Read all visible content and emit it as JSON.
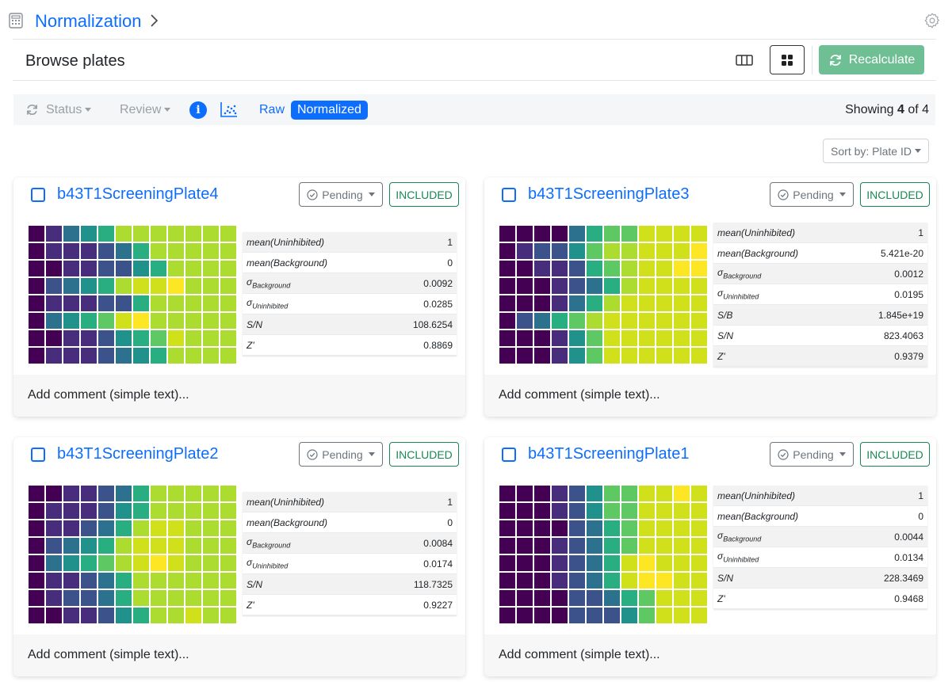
{
  "header": {
    "title": "Normalization",
    "section_title": "Browse plates",
    "recalculate_label": "Recalculate"
  },
  "toolbar": {
    "status_label": "Status",
    "review_label": "Review",
    "raw_label": "Raw",
    "normalized_label": "Normalized",
    "showing_prefix": "Showing",
    "showing_count": "4",
    "showing_of": "of 4"
  },
  "sort": {
    "label": "Sort by: Plate ID"
  },
  "colors": {
    "accent": "#0d6efd",
    "success": "#198754",
    "recalc": "#6fbf95",
    "viridis": [
      "#440154",
      "#472d7b",
      "#3b528b",
      "#2c728e",
      "#21918c",
      "#28ae80",
      "#5ec962",
      "#addc30",
      "#d0e11c",
      "#fde725"
    ]
  },
  "plates": [
    {
      "name": "b43T1ScreeningPlate4",
      "status": "Pending",
      "inclusion": "INCLUDED",
      "comment_placeholder": "Add comment (simple text)...",
      "stats": [
        {
          "key": "mean(Uninhibited)",
          "sub": "",
          "value": "1"
        },
        {
          "key": "mean(Background)",
          "sub": "",
          "value": "0"
        },
        {
          "key": "σ",
          "sub": "Background",
          "value": "0.0092"
        },
        {
          "key": "σ",
          "sub": "Uninhibited",
          "value": "0.0285"
        },
        {
          "key": "S/N",
          "sub": "",
          "value": "108.6254"
        },
        {
          "key": "Z'",
          "sub": "",
          "value": "0.8869"
        }
      ],
      "heatmap": [
        [
          0,
          1,
          3,
          4,
          5,
          7,
          7,
          7,
          7,
          7,
          7,
          7
        ],
        [
          0,
          1,
          1,
          1,
          2,
          3,
          5,
          7,
          7,
          7,
          7,
          7
        ],
        [
          0,
          0,
          1,
          1,
          2,
          2,
          4,
          5,
          7,
          7,
          7,
          7
        ],
        [
          0,
          2,
          3,
          4,
          5,
          7,
          8,
          8,
          9,
          7,
          7,
          7
        ],
        [
          0,
          1,
          1,
          1,
          2,
          2,
          5,
          7,
          7,
          7,
          7,
          7
        ],
        [
          0,
          3,
          4,
          5,
          6,
          8,
          9,
          7,
          7,
          7,
          7,
          7
        ],
        [
          0,
          0,
          1,
          1,
          2,
          4,
          5,
          6,
          8,
          7,
          7,
          7
        ],
        [
          0,
          1,
          1,
          1,
          2,
          3,
          4,
          5,
          7,
          7,
          7,
          7
        ]
      ]
    },
    {
      "name": "b43T1ScreeningPlate3",
      "status": "Pending",
      "inclusion": "INCLUDED",
      "comment_placeholder": "Add comment (simple text)...",
      "stats": [
        {
          "key": "mean(Uninhibited)",
          "sub": "",
          "value": "1"
        },
        {
          "key": "mean(Background)",
          "sub": "",
          "value": "5.421e-20"
        },
        {
          "key": "σ",
          "sub": "Background",
          "value": "0.0012"
        },
        {
          "key": "σ",
          "sub": "Uninhibited",
          "value": "0.0195"
        },
        {
          "key": "S/B",
          "sub": "",
          "value": "1.845e+19"
        },
        {
          "key": "S/N",
          "sub": "",
          "value": "823.4063"
        },
        {
          "key": "Z'",
          "sub": "",
          "value": "0.9379"
        }
      ],
      "heatmap": [
        [
          0,
          0,
          0,
          0,
          3,
          5,
          6,
          6,
          8,
          8,
          8,
          8
        ],
        [
          0,
          1,
          2,
          2,
          4,
          6,
          7,
          7,
          8,
          8,
          8,
          9
        ],
        [
          0,
          0,
          1,
          1,
          2,
          5,
          6,
          7,
          8,
          8,
          9,
          9
        ],
        [
          0,
          0,
          0,
          1,
          2,
          3,
          5,
          7,
          8,
          8,
          8,
          8
        ],
        [
          0,
          0,
          0,
          1,
          3,
          5,
          7,
          8,
          8,
          8,
          8,
          8
        ],
        [
          0,
          2,
          3,
          5,
          6,
          7,
          8,
          8,
          8,
          8,
          8,
          8
        ],
        [
          0,
          0,
          0,
          1,
          4,
          6,
          8,
          8,
          8,
          8,
          8,
          8
        ],
        [
          0,
          0,
          0,
          1,
          4,
          6,
          8,
          8,
          8,
          8,
          8,
          8
        ]
      ]
    },
    {
      "name": "b43T1ScreeningPlate2",
      "status": "Pending",
      "inclusion": "INCLUDED",
      "comment_placeholder": "Add comment (simple text)...",
      "stats": [
        {
          "key": "mean(Uninhibited)",
          "sub": "",
          "value": "1"
        },
        {
          "key": "mean(Background)",
          "sub": "",
          "value": "0"
        },
        {
          "key": "σ",
          "sub": "Background",
          "value": "0.0084"
        },
        {
          "key": "σ",
          "sub": "Uninhibited",
          "value": "0.0174"
        },
        {
          "key": "S/N",
          "sub": "",
          "value": "118.7325"
        },
        {
          "key": "Z'",
          "sub": "",
          "value": "0.9227"
        }
      ],
      "heatmap": [
        [
          0,
          0,
          1,
          1,
          2,
          3,
          5,
          7,
          7,
          7,
          7,
          7
        ],
        [
          0,
          1,
          1,
          1,
          2,
          4,
          5,
          7,
          7,
          7,
          7,
          7
        ],
        [
          0,
          1,
          1,
          2,
          3,
          5,
          7,
          8,
          8,
          7,
          7,
          7
        ],
        [
          0,
          2,
          3,
          4,
          5,
          7,
          8,
          8,
          8,
          7,
          7,
          7
        ],
        [
          0,
          3,
          4,
          5,
          6,
          7,
          8,
          9,
          8,
          7,
          7,
          7
        ],
        [
          0,
          1,
          1,
          2,
          3,
          5,
          7,
          7,
          7,
          7,
          7,
          7
        ],
        [
          0,
          1,
          2,
          2,
          3,
          5,
          7,
          7,
          7,
          7,
          7,
          7
        ],
        [
          0,
          0,
          1,
          1,
          2,
          4,
          5,
          7,
          7,
          8,
          7,
          7
        ]
      ]
    },
    {
      "name": "b43T1ScreeningPlate1",
      "status": "Pending",
      "inclusion": "INCLUDED",
      "comment_placeholder": "Add comment (simple text)...",
      "stats": [
        {
          "key": "mean(Uninhibited)",
          "sub": "",
          "value": "1"
        },
        {
          "key": "mean(Background)",
          "sub": "",
          "value": "0"
        },
        {
          "key": "σ",
          "sub": "Background",
          "value": "0.0044"
        },
        {
          "key": "σ",
          "sub": "Uninhibited",
          "value": "0.0134"
        },
        {
          "key": "S/N",
          "sub": "",
          "value": "228.3469"
        },
        {
          "key": "Z'",
          "sub": "",
          "value": "0.9468"
        }
      ],
      "heatmap": [
        [
          0,
          0,
          0,
          1,
          2,
          4,
          6,
          6,
          8,
          8,
          9,
          8
        ],
        [
          0,
          0,
          0,
          1,
          2,
          4,
          6,
          6,
          8,
          8,
          8,
          8
        ],
        [
          0,
          0,
          0,
          0,
          2,
          3,
          5,
          6,
          8,
          8,
          8,
          8
        ],
        [
          0,
          0,
          0,
          1,
          2,
          3,
          5,
          6,
          8,
          8,
          8,
          8
        ],
        [
          0,
          0,
          0,
          1,
          2,
          3,
          5,
          8,
          9,
          8,
          8,
          8
        ],
        [
          0,
          0,
          0,
          1,
          2,
          3,
          5,
          8,
          9,
          9,
          8,
          8
        ],
        [
          0,
          0,
          0,
          0,
          2,
          2,
          3,
          5,
          6,
          8,
          8,
          8
        ],
        [
          0,
          0,
          0,
          0,
          2,
          2,
          2,
          4,
          6,
          8,
          8,
          8
        ]
      ]
    }
  ]
}
